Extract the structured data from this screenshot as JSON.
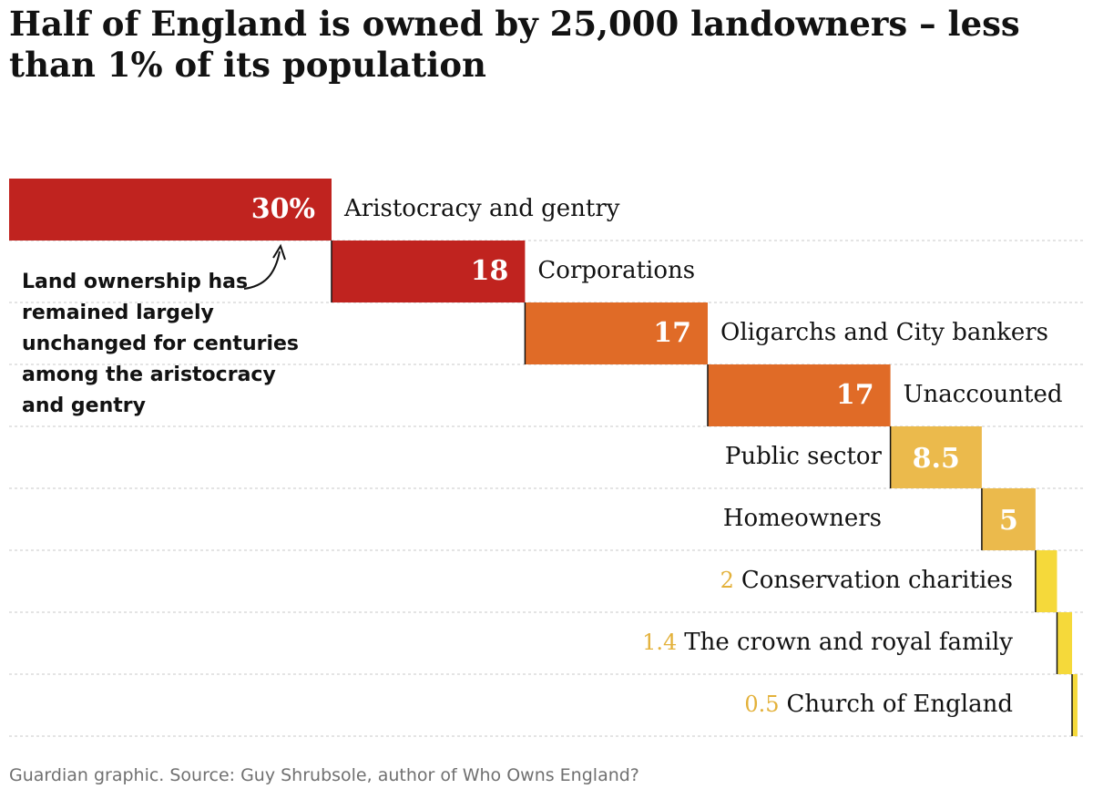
{
  "title": "Half of England is owned by 25,000 landowners – less than 1% of its population",
  "source": "Guardian graphic. Source: Guy Shrubsole, author of Who Owns England?",
  "annotation": {
    "lines": [
      "Land ownership has",
      "remained largely",
      "unchanged for centuries",
      "among the aristocracy",
      "and gentry"
    ]
  },
  "chart_data": {
    "type": "bar",
    "subtype": "waterfall",
    "unit": "%",
    "categories": [
      "Aristocracy and gentry",
      "Corporations",
      "Oligarchs and City bankers",
      "Unaccounted",
      "Public sector",
      "Homeowners",
      "Conservation charities",
      "The crown and royal family",
      "Church of England"
    ],
    "values": [
      30,
      18,
      17,
      17,
      8.5,
      5,
      2,
      1.4,
      0.5
    ],
    "value_labels": [
      "30%",
      "18",
      "17",
      "17",
      "8.5",
      "5",
      "2",
      "1.4",
      "0.5"
    ],
    "colors": [
      "#c0231f",
      "#c0231f",
      "#e06b27",
      "#e06b27",
      "#ebba4c",
      "#ebba4c",
      "#f5d93a",
      "#f5d93a",
      "#f5d93a"
    ],
    "grid": "dotted row separators"
  }
}
